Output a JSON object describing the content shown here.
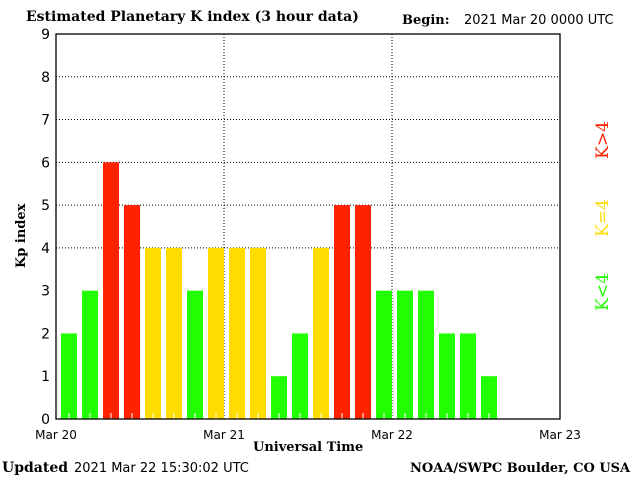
{
  "chart_data": {
    "type": "bar",
    "title": "Estimated Planetary K index (3 hour data)",
    "begin_label": "Begin:",
    "begin_value": "2021 Mar 20 0000 UTC",
    "xlabel": "Universal Time",
    "ylabel": "Kp index",
    "ylim": [
      0,
      9
    ],
    "yticks": [
      "0",
      "1",
      "2",
      "3",
      "4",
      "5",
      "6",
      "7",
      "8",
      "9"
    ],
    "xlim": [
      "2021-03-20 00:00",
      "2021-03-23 00:00"
    ],
    "xticks": [
      "Mar 20",
      "Mar 21",
      "Mar 22",
      "Mar 23"
    ],
    "bar_interval_hours": 3,
    "values": [
      2,
      3,
      6,
      5,
      4,
      4,
      3,
      4,
      4,
      4,
      1,
      2,
      4,
      5,
      5,
      3,
      3,
      3,
      2,
      2,
      1
    ],
    "grid": "dotted at 4-8 and day boundaries",
    "legend": {
      "placement": "right",
      "entries": [
        {
          "label": "K>4",
          "color": "#ff2200"
        },
        {
          "label": "K=4",
          "color": "#ffdd00"
        },
        {
          "label": "K<4",
          "color": "#22ff00"
        }
      ]
    },
    "colors": {
      "low": "#22ff00",
      "mid": "#ffdd00",
      "high": "#ff2200"
    }
  },
  "footer": {
    "updated_label": "Updated",
    "updated_value": "2021 Mar 22 15:30:02 UTC",
    "source": "NOAA/SWPC Boulder, CO USA"
  }
}
